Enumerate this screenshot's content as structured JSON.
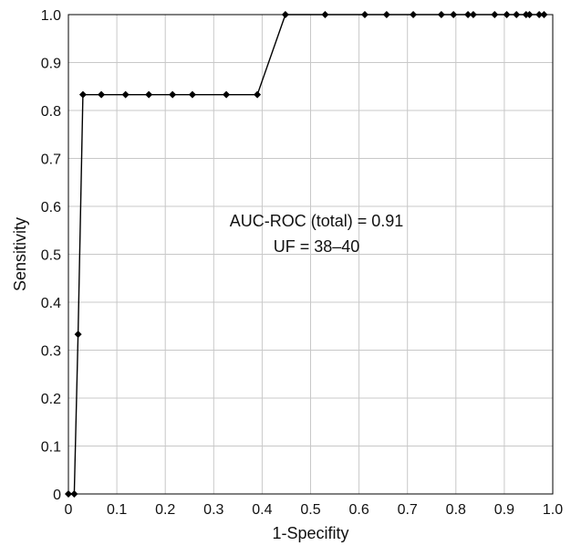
{
  "chart_data": {
    "type": "line",
    "xlabel": "1-Specifity",
    "ylabel": "Sensitivity",
    "xlim": [
      0,
      1
    ],
    "ylim": [
      0,
      1
    ],
    "grid": true,
    "x_ticks": [
      "0",
      "0.1",
      "0.2",
      "0.3",
      "0.4",
      "0.5",
      "0.6",
      "0.7",
      "0.8",
      "0.9",
      "1.0"
    ],
    "y_ticks": [
      "0",
      "0.1",
      "0.2",
      "0.3",
      "0.4",
      "0.5",
      "0.6",
      "0.7",
      "0.8",
      "0.9",
      "1.0"
    ],
    "annotations": [
      "AUC-ROC (total) = 0.91",
      "UF = 38–40"
    ],
    "series": [
      {
        "x": [
          0.0,
          0.012,
          0.02,
          0.03,
          0.068,
          0.118,
          0.166,
          0.215,
          0.256,
          0.326,
          0.39,
          0.448,
          0.53,
          0.612,
          0.657,
          0.712,
          0.77,
          0.795,
          0.825,
          0.836,
          0.88,
          0.905,
          0.925,
          0.945,
          0.952,
          0.972,
          0.982
        ],
        "y": [
          0.0,
          0.0,
          0.333,
          0.833,
          0.833,
          0.833,
          0.833,
          0.833,
          0.833,
          0.833,
          0.833,
          1.0,
          1.0,
          1.0,
          1.0,
          1.0,
          1.0,
          1.0,
          1.0,
          1.0,
          1.0,
          1.0,
          1.0,
          1.0,
          1.0,
          1.0,
          1.0
        ]
      }
    ]
  }
}
